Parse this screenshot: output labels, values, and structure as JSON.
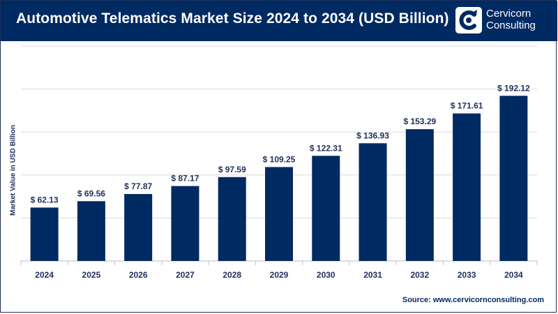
{
  "header": {
    "title": "Automotive Telematics Market Size 2024 to 2034 (USD Billion)"
  },
  "logo": {
    "line1": "Cervicorn",
    "line2": "Consulting",
    "icon": "cervicorn-logo-icon"
  },
  "source": "Source: www.cervicornconsulting.com",
  "colors": {
    "header": "#002a62",
    "bar": "#002a62",
    "grid": "#d9d9d9",
    "text": "#1f2f5a"
  },
  "chart_data": {
    "type": "bar",
    "title": "Automotive Telematics Market Size 2024 to 2034 (USD Billion)",
    "xlabel": "",
    "ylabel": "Market Value in USD Billion",
    "categories": [
      "2024",
      "2025",
      "2026",
      "2027",
      "2028",
      "2029",
      "2030",
      "2031",
      "2032",
      "2033",
      "2034"
    ],
    "values": [
      62.13,
      69.56,
      77.87,
      87.17,
      97.59,
      109.25,
      122.31,
      136.93,
      153.29,
      171.61,
      192.12
    ],
    "value_labels": [
      "$ 62.13",
      "$ 69.56",
      "$ 77.87",
      "$ 87.17",
      "$ 97.59",
      "$ 109.25",
      "$ 122.31",
      "$ 136.93",
      "$ 153.29",
      "$ 171.61",
      "$ 192.12"
    ],
    "ylim": [
      0,
      250
    ],
    "grid": true,
    "legend": "none"
  }
}
